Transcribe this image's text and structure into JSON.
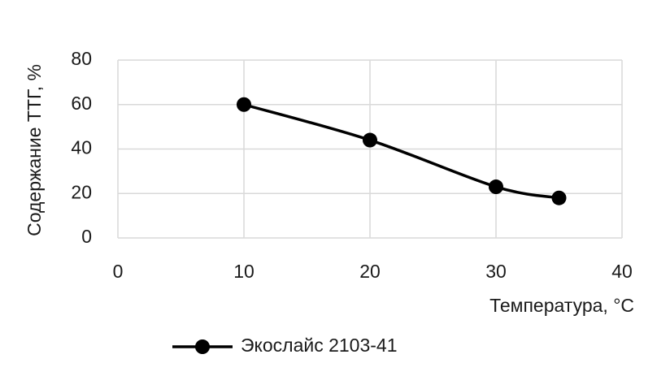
{
  "chart_data": {
    "type": "line",
    "x_label": "Температура, °С",
    "y_label": "Содержание ТТГ, %",
    "series": [
      {
        "name": "Экослайс 2103-41",
        "color": "#000000",
        "x": [
          10,
          20,
          30,
          35
        ],
        "values": [
          60,
          44,
          23,
          18
        ]
      }
    ],
    "xlim": [
      0,
      40
    ],
    "xticks": [
      0,
      10,
      20,
      30,
      40
    ],
    "ylim": [
      0,
      80
    ],
    "yticks": [
      0,
      20,
      40,
      60,
      80
    ],
    "grid": true,
    "smooth": true,
    "legend": "bottom"
  }
}
